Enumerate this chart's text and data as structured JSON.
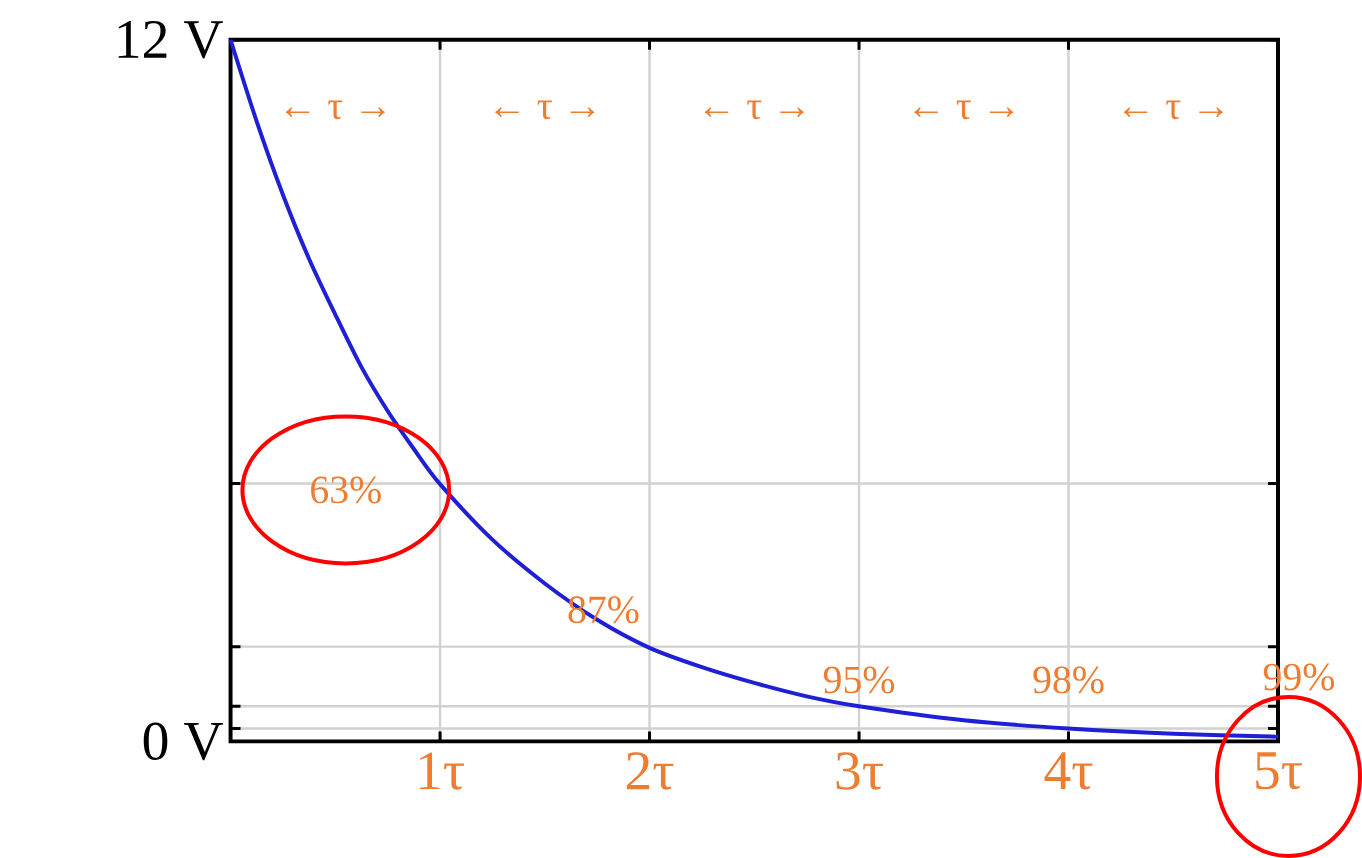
{
  "chart_data": {
    "type": "line",
    "xlim": [
      0,
      5
    ],
    "ylim": [
      0,
      12
    ],
    "xticks": [
      {
        "value": 1,
        "label": "1τ"
      },
      {
        "value": 2,
        "label": "2τ"
      },
      {
        "value": 3,
        "label": "3τ"
      },
      {
        "value": 4,
        "label": "4τ"
      },
      {
        "value": 5,
        "label": "5τ"
      }
    ],
    "yticks": [
      {
        "value": 0,
        "label": "0 V"
      },
      {
        "value": 0.22,
        "label": null
      },
      {
        "value": 0.6,
        "label": null
      },
      {
        "value": 1.62,
        "label": null
      },
      {
        "value": 4.41,
        "label": null
      },
      {
        "value": 12,
        "label": "12 V"
      }
    ],
    "grid": true,
    "marker": "none",
    "line_style": "solid",
    "x": [
      0,
      0.125,
      0.25,
      0.375,
      0.5,
      0.625,
      0.75,
      0.875,
      1,
      1.25,
      1.5,
      1.75,
      2,
      2.25,
      2.5,
      2.75,
      3,
      3.5,
      4,
      4.5,
      5
    ],
    "series": [
      {
        "color": "#1f1fd6",
        "values": [
          12,
          10.6,
          9.35,
          8.25,
          7.3,
          6.4,
          5.65,
          5.0,
          4.4,
          3.45,
          2.7,
          2.08,
          1.6,
          1.27,
          1.0,
          0.77,
          0.6,
          0.36,
          0.22,
          0.13,
          0.08
        ]
      }
    ],
    "annotations": [
      "← τ →",
      "← τ →",
      "← τ →",
      "← τ →",
      "← τ →",
      "63%",
      "87%",
      "95%",
      "98%",
      "99%"
    ]
  }
}
